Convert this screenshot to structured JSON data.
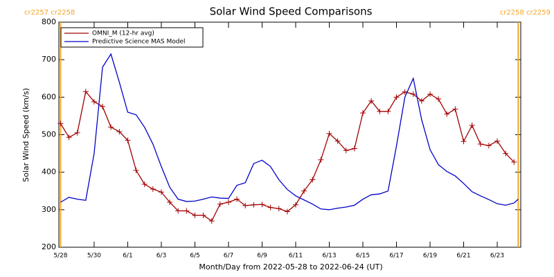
{
  "chart_data": {
    "type": "line",
    "title": "Solar Wind Speed Comparisons",
    "x_label": "Month/Day from 2022-05-28 to 2022-06-24 (UT)",
    "y_label": "Solar Wind Speed (km/s)",
    "xlim": [
      -0.1,
      27.4
    ],
    "ylim": [
      200,
      800
    ],
    "xticks": [
      {
        "value": 0,
        "label": "5/28"
      },
      {
        "value": 2,
        "label": "5/30"
      },
      {
        "value": 4,
        "label": "6/1"
      },
      {
        "value": 6,
        "label": "6/3"
      },
      {
        "value": 8,
        "label": "6/5"
      },
      {
        "value": 10,
        "label": "6/7"
      },
      {
        "value": 12,
        "label": "6/9"
      },
      {
        "value": 14,
        "label": "6/11"
      },
      {
        "value": 16,
        "label": "6/13"
      },
      {
        "value": 18,
        "label": "6/15"
      },
      {
        "value": 20,
        "label": "6/17"
      },
      {
        "value": 22,
        "label": "6/19"
      },
      {
        "value": 24,
        "label": "6/21"
      },
      {
        "value": 26,
        "label": "6/23"
      }
    ],
    "yticks": [
      200,
      300,
      400,
      500,
      600,
      700,
      800
    ],
    "legend": "upper left",
    "cr_boundaries": [
      {
        "x": 0,
        "label": "cr2257 cr2258",
        "color": "#f5a623"
      },
      {
        "x": 27.25,
        "label": "cr2258 cr2259",
        "color": "#f5a623"
      }
    ],
    "series": [
      {
        "name": "OMNI_M (12-hr avg)",
        "color": "#a00000",
        "markers": true,
        "x": [
          0,
          0.5,
          1,
          1.5,
          2,
          2.5,
          3,
          3.5,
          4,
          4.5,
          5,
          5.5,
          6,
          6.5,
          7,
          7.5,
          8,
          8.5,
          9,
          9.5,
          10,
          10.5,
          11,
          11.5,
          12,
          12.5,
          13,
          13.5,
          14,
          14.5,
          15,
          15.5,
          16,
          16.5,
          17,
          17.5,
          18,
          18.5,
          19,
          19.5,
          20,
          20.5,
          21,
          21.5,
          22,
          22.5,
          23,
          23.5,
          24,
          24.5,
          25,
          25.5,
          26,
          26.5,
          27
        ],
        "values": [
          530,
          493,
          505,
          615,
          588,
          575,
          520,
          508,
          485,
          405,
          368,
          355,
          347,
          320,
          297,
          297,
          285,
          285,
          270,
          315,
          320,
          328,
          311,
          313,
          314,
          306,
          303,
          295,
          313,
          350,
          380,
          433,
          503,
          483,
          458,
          463,
          558,
          590,
          562,
          562,
          600,
          614,
          608,
          590,
          608,
          595,
          555,
          568,
          482,
          525,
          475,
          471,
          483,
          450,
          427
        ]
      },
      {
        "name": "Predictive Science MAS Model",
        "color": "#0000c8",
        "markers": false,
        "x": [
          0,
          0.5,
          1,
          1.5,
          2,
          2.5,
          3,
          3.5,
          4,
          4.5,
          5,
          5.5,
          6,
          6.5,
          7,
          7.5,
          8,
          8.5,
          9,
          9.5,
          10,
          10.5,
          11,
          11.5,
          12,
          12.5,
          13,
          13.5,
          14,
          14.5,
          15,
          15.5,
          16,
          16.5,
          17,
          17.5,
          18,
          18.5,
          19,
          19.5,
          20,
          20.5,
          21,
          21.5,
          22,
          22.5,
          23,
          23.5,
          24,
          24.5,
          25,
          25.5,
          26,
          26.5,
          27,
          27.25
        ],
        "values": [
          320,
          333,
          328,
          325,
          450,
          680,
          715,
          640,
          560,
          553,
          520,
          475,
          415,
          360,
          328,
          322,
          323,
          328,
          334,
          331,
          330,
          365,
          372,
          423,
          432,
          415,
          380,
          354,
          337,
          326,
          315,
          302,
          300,
          304,
          307,
          312,
          328,
          340,
          342,
          350,
          470,
          600,
          650,
          540,
          460,
          420,
          402,
          390,
          370,
          348,
          337,
          327,
          316,
          312,
          318,
          328
        ]
      }
    ]
  }
}
